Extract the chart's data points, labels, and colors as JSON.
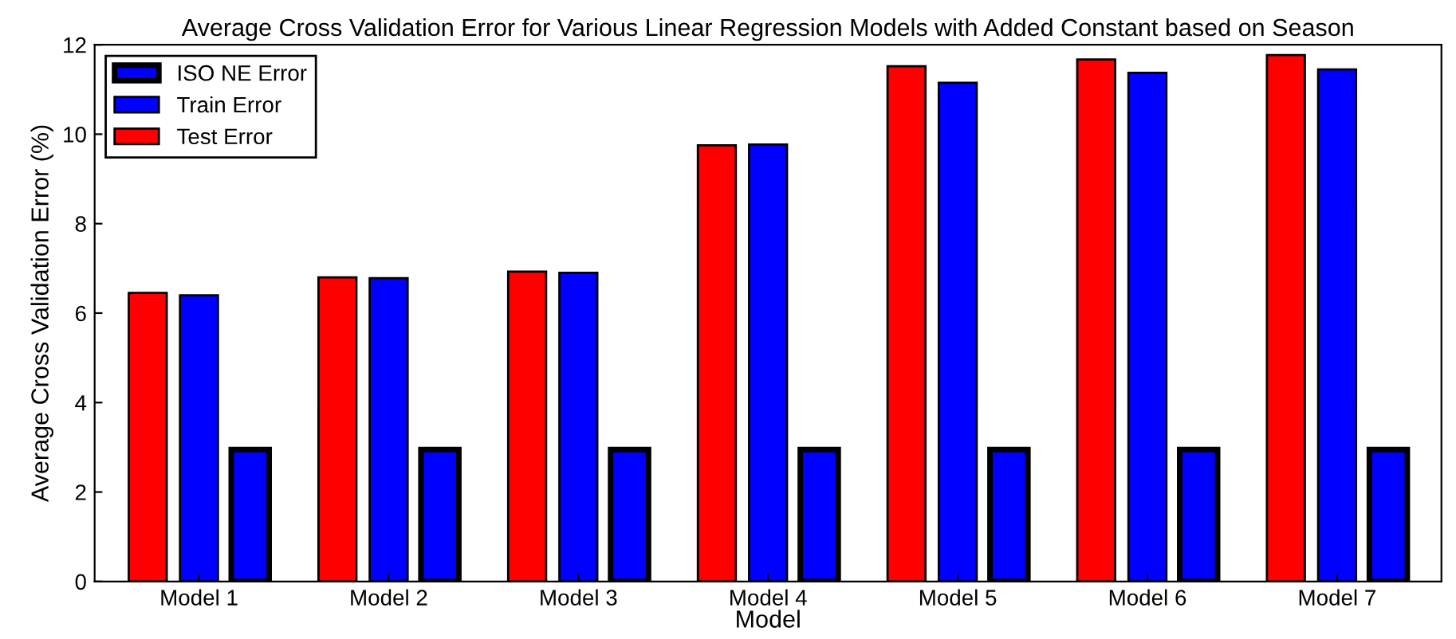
{
  "chart_data": {
    "type": "bar",
    "title": "Average Cross Validation Error for Various Linear Regression Models with Added Constant based on Season",
    "xlabel": "Model",
    "ylabel": "Average Cross Validation Error (%)",
    "categories": [
      "Model 1",
      "Model 2",
      "Model 3",
      "Model 4",
      "Model 5",
      "Model 6",
      "Model 7"
    ],
    "series": [
      {
        "name": "ISO NE Error",
        "color": "#0000ff",
        "values": [
          2.95,
          2.95,
          2.95,
          2.95,
          2.95,
          2.95,
          2.95
        ]
      },
      {
        "name": "Train Error",
        "color": "#0000ff",
        "values": [
          6.4,
          6.78,
          6.9,
          9.77,
          11.15,
          11.37,
          11.45
        ]
      },
      {
        "name": "Test Error",
        "color": "#ff0000",
        "values": [
          6.45,
          6.8,
          6.93,
          9.75,
          11.52,
          11.67,
          11.77
        ]
      }
    ],
    "ylim": [
      0,
      12
    ],
    "yticks": [
      0,
      2,
      4,
      6,
      8,
      10,
      12
    ],
    "grid": false,
    "legend": "top left"
  }
}
